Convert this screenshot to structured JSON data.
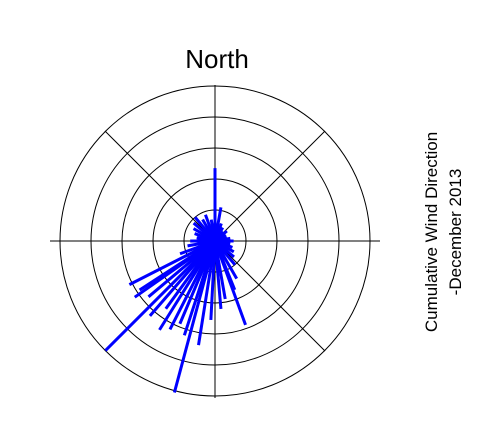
{
  "chart_data": {
    "type": "polar-spokes",
    "title": "North",
    "side_text": [
      "Cumulative Wind Direction",
      "-December 2013"
    ],
    "color": "#0000ff",
    "directions": [
      0,
      10,
      20,
      30,
      40,
      50,
      60,
      70,
      80,
      90,
      100,
      110,
      120,
      130,
      140,
      150,
      158,
      160,
      170,
      175,
      183,
      189,
      195,
      198,
      203,
      207,
      212,
      216,
      221,
      225,
      230,
      235,
      237,
      243,
      250,
      260,
      270,
      280,
      290,
      300,
      310,
      320,
      330,
      340,
      350
    ],
    "values": [
      2.35,
      1.1,
      0.6,
      0.5,
      0.4,
      0.5,
      0.4,
      0.4,
      0.5,
      0.6,
      0.5,
      0.6,
      0.7,
      0.8,
      1.0,
      1.4,
      1.7,
      2.88,
      1.9,
      2.2,
      2.55,
      3.4,
      5.06,
      3.2,
      2.9,
      3.2,
      3.38,
      2.7,
      3.2,
      5.0,
      2.8,
      3.16,
      2.9,
      3.1,
      1.2,
      0.9,
      0.8,
      0.6,
      0.7,
      0.8,
      0.9,
      1.0,
      0.8,
      0.9,
      0.7
    ],
    "rlim": [
      0,
      5
    ],
    "rticks": [
      1,
      2,
      3,
      4,
      5
    ],
    "grid": true
  }
}
